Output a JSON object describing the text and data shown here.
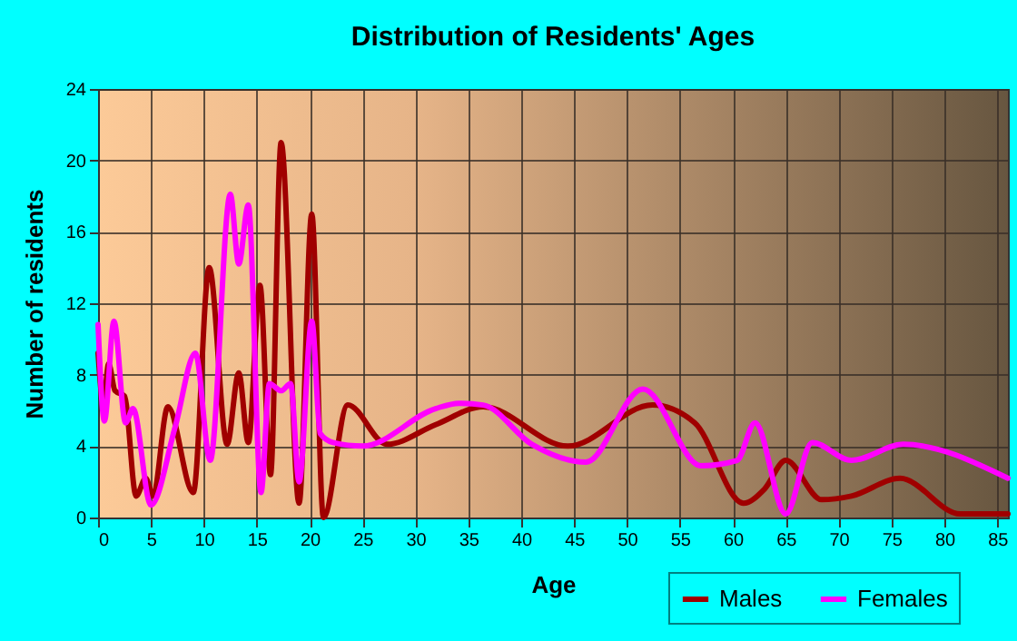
{
  "chart_data": {
    "type": "line",
    "title": "Distribution of Residents' Ages",
    "xlabel": "Age",
    "ylabel": "Number of residents",
    "xlim": [
      0,
      86
    ],
    "xticks": [
      0,
      5,
      10,
      15,
      20,
      25,
      30,
      35,
      40,
      45,
      50,
      55,
      60,
      65,
      70,
      75,
      80,
      85
    ],
    "ylim": [
      0,
      24
    ],
    "yticks": [
      0,
      4,
      8,
      12,
      16,
      20,
      24
    ],
    "grid": true,
    "legend": "bottom right",
    "series": [
      {
        "name": "Males",
        "color": "#a00000",
        "x": [
          0,
          0.5,
          1,
          1.6,
          2.5,
          3.6,
          4.5,
          5.2,
          6.6,
          9,
          10.5,
          12.2,
          13.3,
          14.2,
          15.3,
          16.3,
          17.3,
          19,
          20.2,
          21.3,
          23.6,
          27.3,
          31.9,
          36.4,
          44.4,
          52.4,
          56.4,
          61,
          63,
          65,
          68.4,
          71.2,
          75.8,
          81.5,
          86
        ],
        "values": [
          9.2,
          6.4,
          8.6,
          7.1,
          6.8,
          1.2,
          2.2,
          1.2,
          6.2,
          1.4,
          14,
          4.1,
          8.1,
          4.2,
          13,
          2.4,
          21,
          0.8,
          17,
          0,
          6.3,
          4.1,
          5.2,
          6.2,
          4,
          6.3,
          5.3,
          0.8,
          1.6,
          3.2,
          1,
          1.2,
          2.2,
          0.2,
          0.2
        ]
      },
      {
        "name": "Females",
        "color": "#ff00ff",
        "x": [
          0,
          0.6,
          1.5,
          2.6,
          3.3,
          5,
          7.3,
          9.2,
          10.6,
          12.5,
          13.3,
          14.2,
          15.4,
          16.2,
          17.3,
          18.2,
          19,
          20.2,
          21,
          22.2,
          25,
          31.9,
          34.1,
          36.4,
          41,
          46.1,
          51.5,
          57,
          60.4,
          62.1,
          65,
          67.5,
          71.2,
          76.1,
          86
        ],
        "values": [
          10.8,
          5.4,
          11,
          5.3,
          6.1,
          0.7,
          5.1,
          9.2,
          3.2,
          18.1,
          14.2,
          17.5,
          1.4,
          7.5,
          7.1,
          7.5,
          2,
          11,
          4.7,
          4.2,
          4,
          6.1,
          6.4,
          6.3,
          4.1,
          3.1,
          7.2,
          2.9,
          3.2,
          5.3,
          0.2,
          4.2,
          3.2,
          4.1,
          2.2
        ]
      }
    ]
  }
}
